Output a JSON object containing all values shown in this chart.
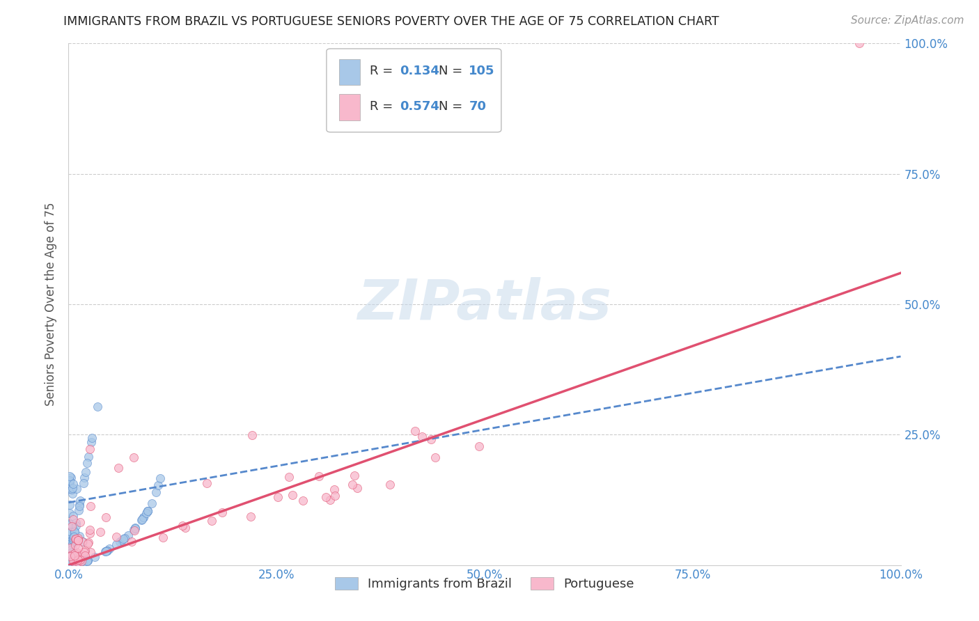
{
  "title": "IMMIGRANTS FROM BRAZIL VS PORTUGUESE SENIORS POVERTY OVER THE AGE OF 75 CORRELATION CHART",
  "source": "Source: ZipAtlas.com",
  "ylabel": "Seniors Poverty Over the Age of 75",
  "xlim": [
    0.0,
    1.0
  ],
  "ylim": [
    0.0,
    1.0
  ],
  "xticks": [
    0.0,
    0.25,
    0.5,
    0.75,
    1.0
  ],
  "yticks": [
    0.0,
    0.25,
    0.5,
    0.75,
    1.0
  ],
  "xticklabels": [
    "0.0%",
    "25.0%",
    "50.0%",
    "75.0%",
    "100.0%"
  ],
  "yticklabels_right": [
    "25.0%",
    "50.0%",
    "75.0%",
    "100.0%"
  ],
  "yticks_right": [
    0.25,
    0.5,
    0.75,
    1.0
  ],
  "brazil_R": 0.134,
  "brazil_N": 105,
  "portuguese_R": 0.574,
  "portuguese_N": 70,
  "brazil_color": "#a8c8e8",
  "portuguese_color": "#f8b8cc",
  "brazil_line_color": "#5588cc",
  "portuguese_line_color": "#e05070",
  "background_color": "#ffffff",
  "grid_color": "#cccccc",
  "legend_label_brazil": "Immigrants from Brazil",
  "legend_label_portuguese": "Portuguese",
  "title_color": "#222222",
  "axis_label_color": "#555555",
  "tick_label_color": "#4488cc",
  "brazil_line_start_y": 0.12,
  "brazil_line_end_y": 0.4,
  "portuguese_line_start_y": 0.0,
  "portuguese_line_end_y": 0.56
}
